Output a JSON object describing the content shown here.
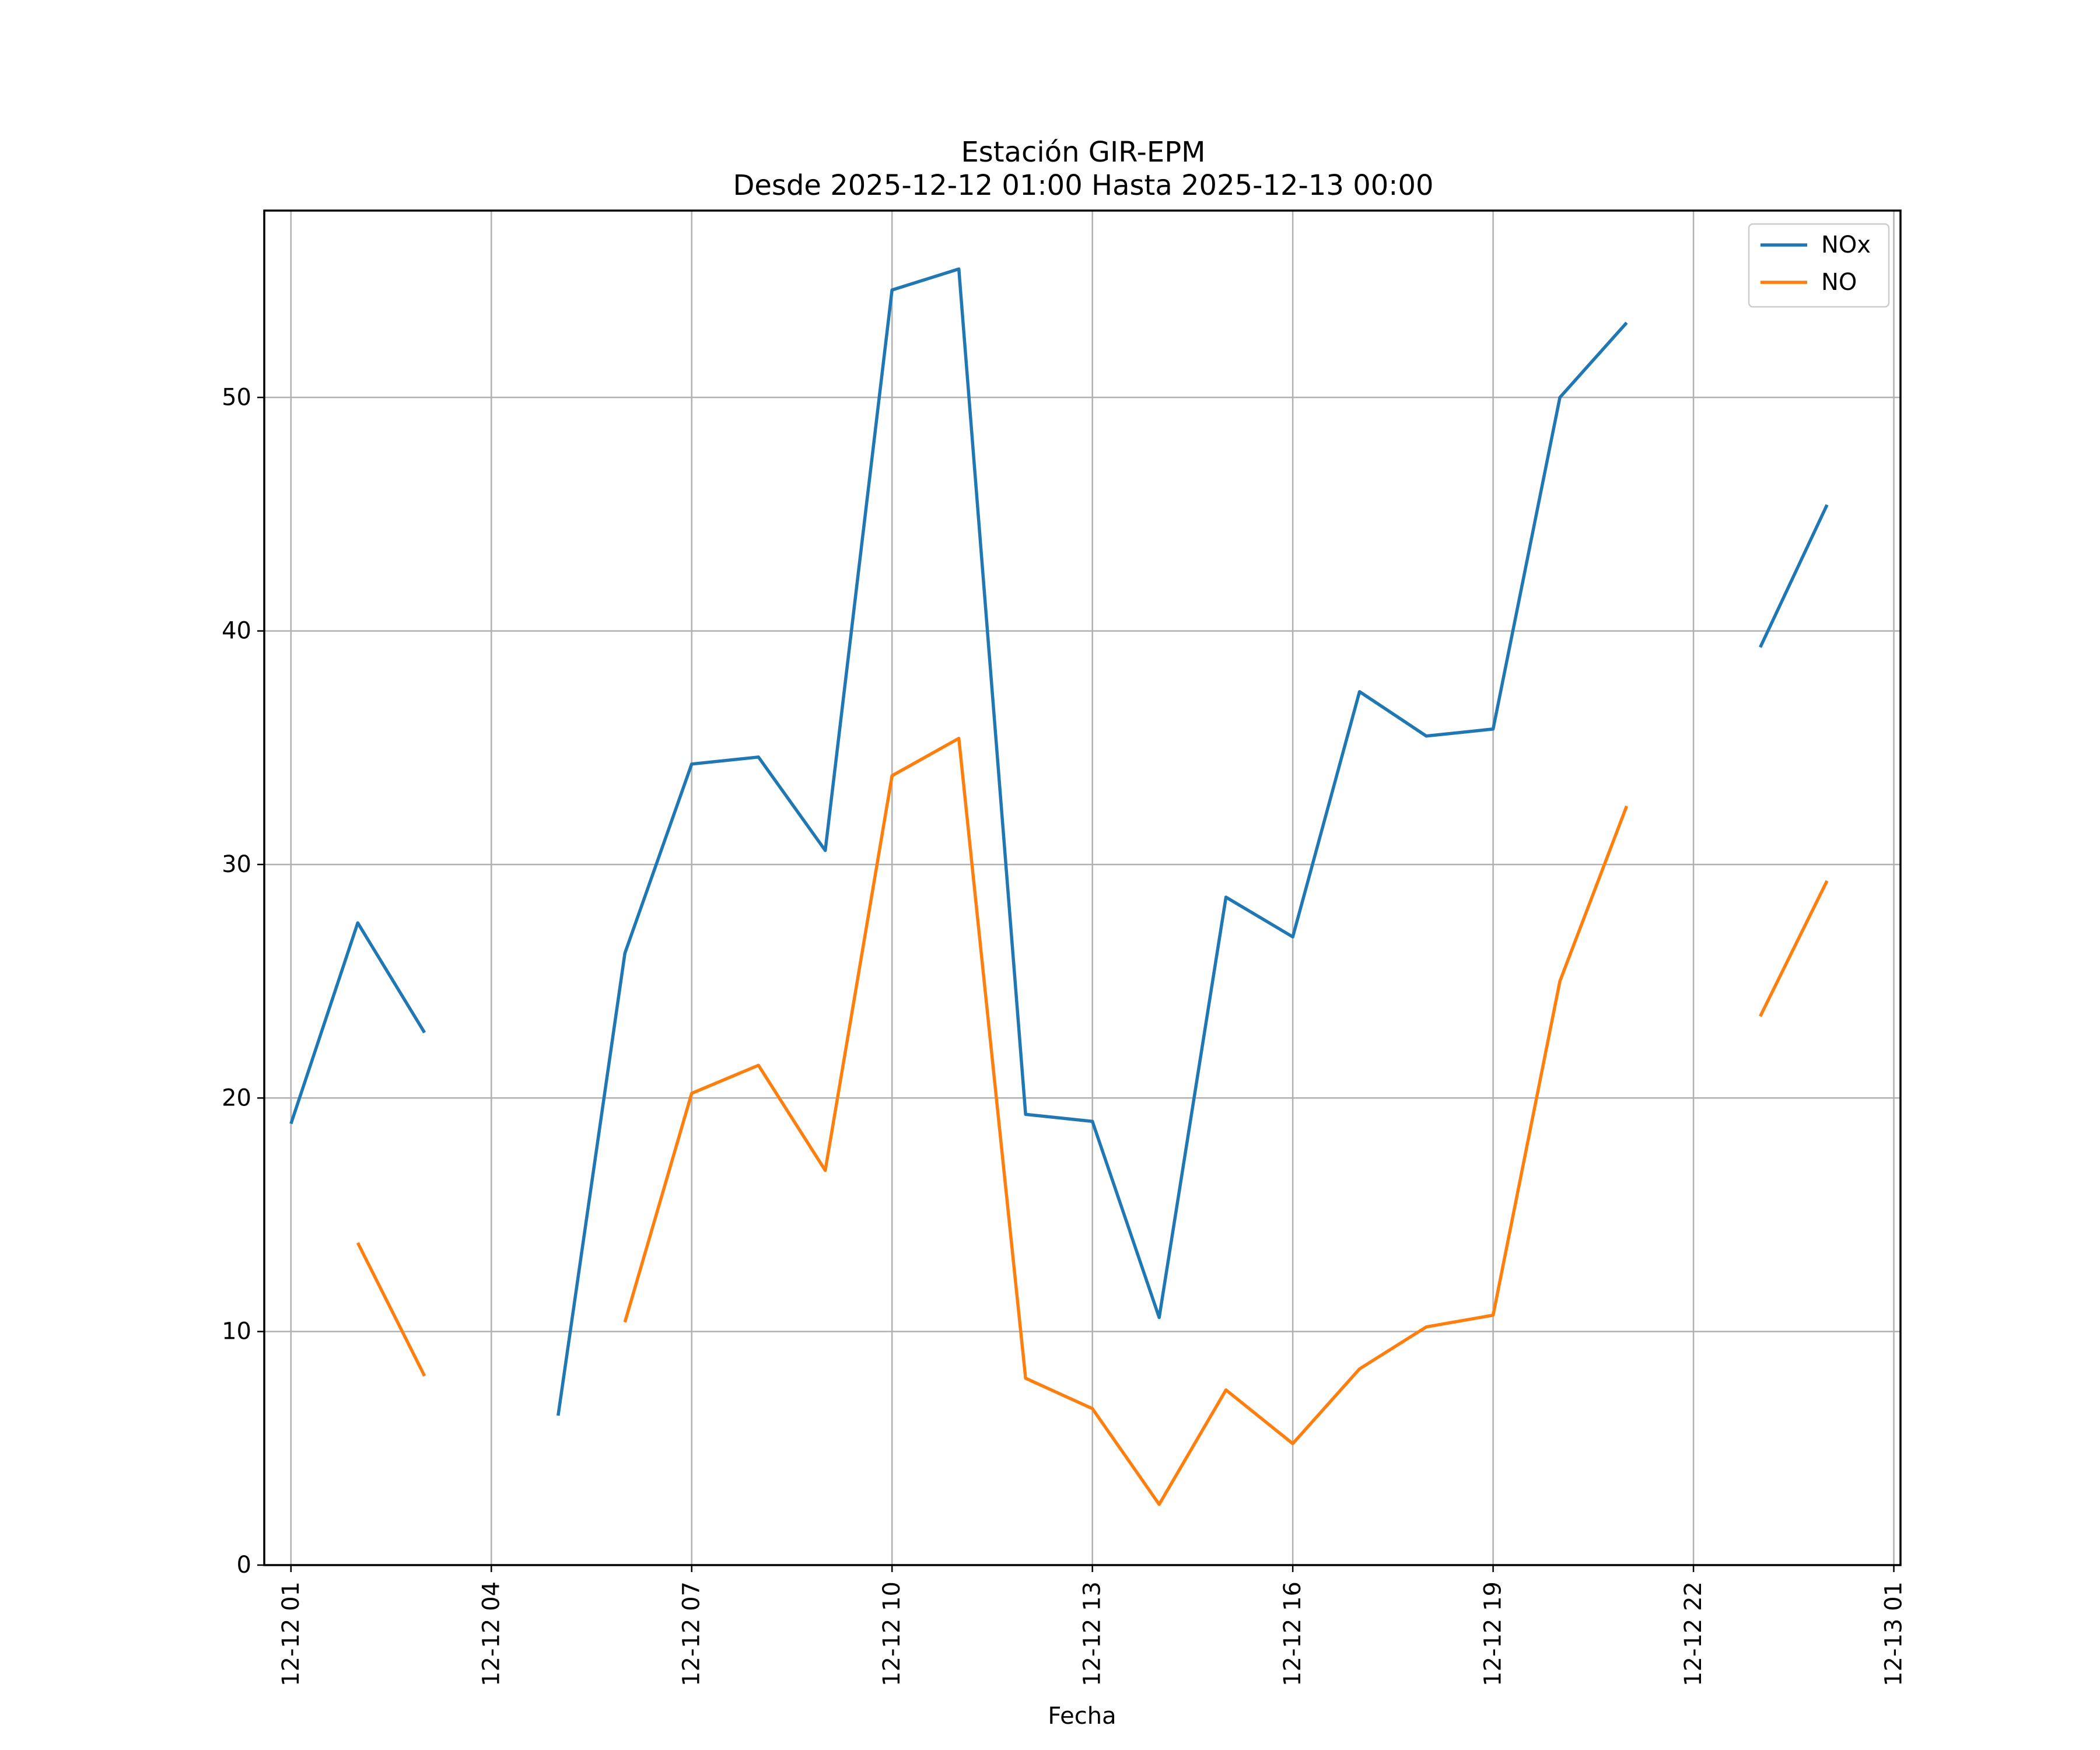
{
  "chart_data": {
    "type": "line",
    "title": "Estación GIR-EPM",
    "subtitle": "Desde 2025-12-12 01:00 Hasta 2025-12-13 00:00",
    "xlabel": "Fecha",
    "ylabel": "",
    "ylim": [
      0,
      58
    ],
    "xlim": [
      0.6,
      25.1
    ],
    "grid": true,
    "legend_position": "top-right",
    "x_ticks": [
      {
        "x": 1,
        "label": "12-12 01"
      },
      {
        "x": 4,
        "label": "12-12 04"
      },
      {
        "x": 7,
        "label": "12-12 07"
      },
      {
        "x": 10,
        "label": "12-12 10"
      },
      {
        "x": 13,
        "label": "12-12 13"
      },
      {
        "x": 16,
        "label": "12-12 16"
      },
      {
        "x": 19,
        "label": "12-12 19"
      },
      {
        "x": 22,
        "label": "12-12 22"
      },
      {
        "x": 25,
        "label": "12-13 01"
      }
    ],
    "y_ticks": [
      0,
      10,
      20,
      30,
      40,
      50
    ],
    "x": [
      1,
      2,
      3,
      4,
      5,
      6,
      7,
      8,
      9,
      10,
      11,
      12,
      13,
      14,
      15,
      16,
      17,
      18,
      19,
      20,
      21,
      22,
      23,
      24
    ],
    "series": [
      {
        "name": "NOx",
        "color": "#1f77b4",
        "values": [
          18.9,
          27.5,
          22.8,
          null,
          6.4,
          26.2,
          34.3,
          34.6,
          30.6,
          54.6,
          55.5,
          19.3,
          19.0,
          10.6,
          28.6,
          26.9,
          37.4,
          35.5,
          35.8,
          50.0,
          53.2,
          null,
          39.3,
          45.4
        ]
      },
      {
        "name": "NO",
        "color": "#ff7f0e",
        "values": [
          null,
          13.8,
          8.1,
          null,
          null,
          10.4,
          20.2,
          21.4,
          16.9,
          33.8,
          35.4,
          8.0,
          6.7,
          2.6,
          7.5,
          5.2,
          8.4,
          10.2,
          10.7,
          25.0,
          32.5,
          null,
          23.5,
          29.3
        ]
      }
    ]
  }
}
